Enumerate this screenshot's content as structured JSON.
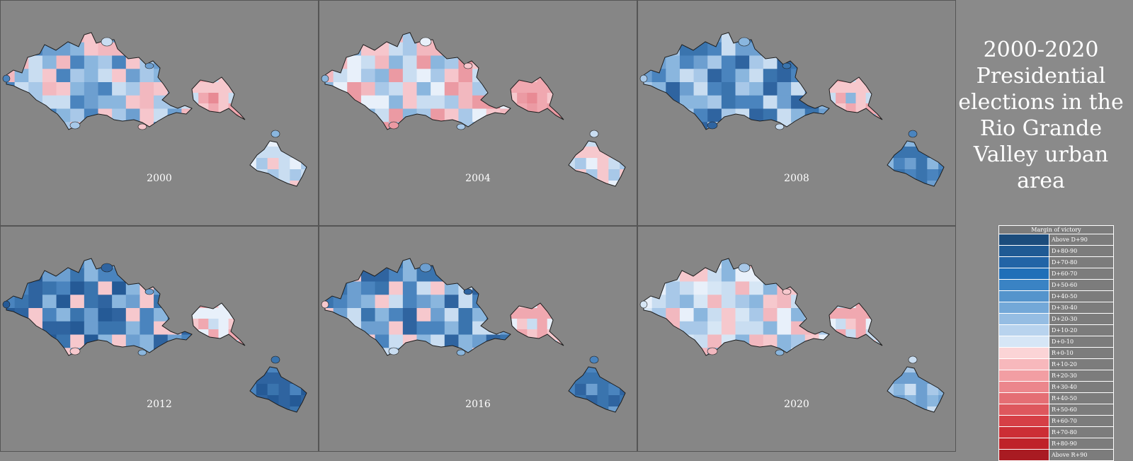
{
  "title": "2000-2020 Presidential elections in the Rio Grande Valley urban area",
  "panels": [
    {
      "year": "2000",
      "west": [
        "#8ab6de",
        "#f2b8bf",
        "#c9ddf1",
        "#6d9fd0",
        "#f6c6cc",
        "#a8c8e8",
        "#4a84be"
      ],
      "mid": [
        "#f0a8b0",
        "#e88a94",
        "#f6c8cd",
        "#c9ddf1"
      ],
      "south": [
        "#c9ddf1",
        "#e8f0fa",
        "#a8c8e8",
        "#f6c8cd"
      ]
    },
    {
      "year": "2004",
      "west": [
        "#c9ddf1",
        "#f2b8bf",
        "#e8f0fa",
        "#f6c6cc",
        "#a8c8e8",
        "#eb9aa3",
        "#8ab6de"
      ],
      "mid": [
        "#e88a94",
        "#f0a8b0",
        "#f6c8cd",
        "#eb9aa3"
      ],
      "south": [
        "#c9ddf1",
        "#a8c8e8",
        "#e8f0fa",
        "#f6c8cd"
      ]
    },
    {
      "year": "2008",
      "west": [
        "#4a84be",
        "#6d9fd0",
        "#8ab6de",
        "#3a74ae",
        "#c9ddf1",
        "#2f64a0",
        "#a8c8e8"
      ],
      "mid": [
        "#f6c8cd",
        "#c9ddf1",
        "#f0a8b0",
        "#8ab6de"
      ],
      "south": [
        "#4a84be",
        "#6d9fd0",
        "#3a74ae",
        "#8ab6de"
      ]
    },
    {
      "year": "2012",
      "west": [
        "#3a74ae",
        "#4a84be",
        "#2f64a0",
        "#6d9fd0",
        "#8ab6de",
        "#f6c8cd",
        "#255a96"
      ],
      "mid": [
        "#f6c8cd",
        "#f0a8b0",
        "#c9ddf1",
        "#e8f0fa"
      ],
      "south": [
        "#3a74ae",
        "#2f64a0",
        "#4a84be",
        "#255a96"
      ]
    },
    {
      "year": "2016",
      "west": [
        "#4a84be",
        "#3a74ae",
        "#6d9fd0",
        "#2f64a0",
        "#8ab6de",
        "#c9ddf1",
        "#f6c8cd"
      ],
      "mid": [
        "#f6c8cd",
        "#c9ddf1",
        "#f0a8b0",
        "#e8f0fa"
      ],
      "south": [
        "#3a74ae",
        "#4a84be",
        "#2f64a0",
        "#6d9fd0"
      ]
    },
    {
      "year": "2020",
      "west": [
        "#c9ddf1",
        "#e8f0fa",
        "#a8c8e8",
        "#f6c8cd",
        "#8ab6de",
        "#f2b8bf",
        "#d6e6f5"
      ],
      "mid": [
        "#f6c8cd",
        "#f0a8b0",
        "#e8f0fa",
        "#c9ddf1"
      ],
      "south": [
        "#a8c8e8",
        "#8ab6de",
        "#c9ddf1",
        "#6d9fd0"
      ]
    }
  ],
  "legend": {
    "title": "Margin of victory",
    "items": [
      {
        "label": "Above D+90",
        "color": "#1b4c7c"
      },
      {
        "label": "D+80-90",
        "color": "#1f5a94"
      },
      {
        "label": "D+70-80",
        "color": "#2264a6"
      },
      {
        "label": "D+60-70",
        "color": "#1f6fb8"
      },
      {
        "label": "D+50-60",
        "color": "#3a83c4"
      },
      {
        "label": "D+40-50",
        "color": "#5494cc"
      },
      {
        "label": "D+30-40",
        "color": "#73a8d8"
      },
      {
        "label": "D+20-30",
        "color": "#95bde3"
      },
      {
        "label": "D+10-20",
        "color": "#b8d3ee"
      },
      {
        "label": "D+0-10",
        "color": "#d6e6f6"
      },
      {
        "label": "R+0-10",
        "color": "#fbd4d6"
      },
      {
        "label": "R+10-20",
        "color": "#f7b8bc"
      },
      {
        "label": "R+20-30",
        "color": "#f29ea3"
      },
      {
        "label": "R+30-40",
        "color": "#ec868c"
      },
      {
        "label": "R+40-50",
        "color": "#e56e74"
      },
      {
        "label": "R+50-60",
        "color": "#de575d"
      },
      {
        "label": "R+60-70",
        "color": "#d63f46"
      },
      {
        "label": "R+70-80",
        "color": "#cc2e35"
      },
      {
        "label": "R+80-90",
        "color": "#bf2229"
      },
      {
        "label": "Above R+90",
        "color": "#a91b22"
      }
    ]
  }
}
